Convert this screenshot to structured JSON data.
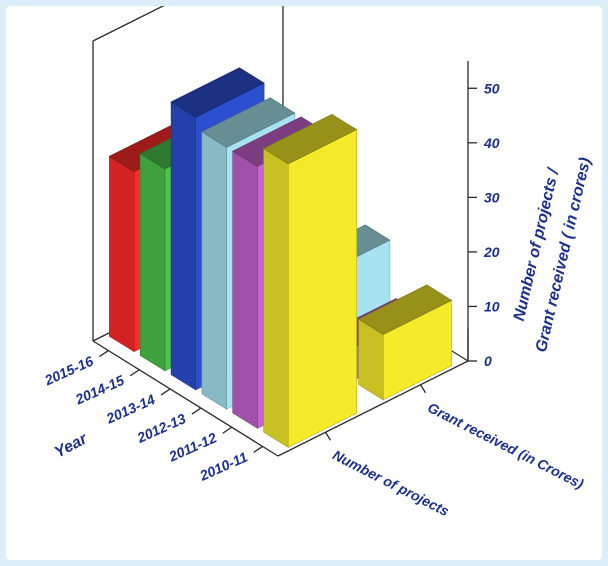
{
  "chart_data": {
    "type": "bar",
    "title": "",
    "subtitle": "",
    "categories": [
      "2010-11",
      "2011-12",
      "2012-13",
      "2013-14",
      "2014-15",
      "2015-16"
    ],
    "series": [
      {
        "name": "Number of projects",
        "values": [
          52,
          48,
          48,
          50,
          37,
          33
        ]
      },
      {
        "name": "Grant received (in Crores)",
        "values": [
          12,
          6,
          16,
          13,
          7,
          9
        ]
      }
    ],
    "category_colors": [
      "#f4ea2a",
      "#c563cf",
      "#a6e3f0",
      "#2c4fd0",
      "#4bc44b",
      "#ff2b2b"
    ],
    "xlabel": "Year",
    "ylabel": "Number of projects / Grant received ( in crores)",
    "ylim": [
      0,
      55
    ],
    "yticks": [
      0,
      10,
      20,
      30,
      40,
      50
    ],
    "grid": false,
    "legend": "none"
  }
}
